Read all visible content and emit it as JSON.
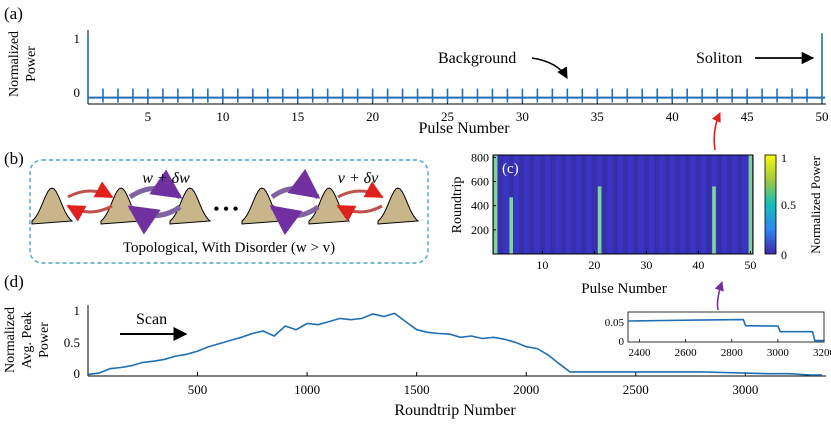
{
  "colors": {
    "line": "#1f6fb4",
    "axis": "#000000",
    "dashed_box": "#4aa3c8",
    "gauss_fill": "#c8b68a",
    "arrow_red": "#c0504d",
    "arrow_purple": "#8064a2",
    "annot_red": "#e0201b",
    "annot_purple": "#7030a0",
    "heat_bg": "#3a33c8",
    "heat_stripe": "#352fa8",
    "heat_hot": "#7fd49a"
  },
  "panel_a": {
    "label": "(a)",
    "ylabel_line1": "Normalized",
    "ylabel_line2": "Power",
    "yticks": [
      "1",
      "0"
    ],
    "xticks": [
      "5",
      "10",
      "15",
      "20",
      "25",
      "30",
      "35",
      "40",
      "45",
      "50"
    ],
    "xlabel": "Pulse Number",
    "annot_background": "Background",
    "annot_soliton": "Soliton"
  },
  "panel_b": {
    "label": "(b)",
    "hop_left": "w + δw",
    "hop_right": "v + δv",
    "dots": "• • •",
    "caption": "Topological, With Disorder (w > v)"
  },
  "panel_c": {
    "label": "(c)",
    "ylabel": "Roundtrip",
    "yticks": [
      "800",
      "600",
      "400",
      "200"
    ],
    "xticks": [
      "10",
      "20",
      "30",
      "40",
      "50"
    ],
    "xlabel": "Pulse Number",
    "colorbar_label": "Normalized Power",
    "colorbar_ticks": [
      "1",
      "0.5",
      "0"
    ]
  },
  "panel_d": {
    "label": "(d)",
    "ylabel_line1": "Normalized",
    "ylabel_line2": "Avg. Peak",
    "ylabel_line3": "Power",
    "yticks": [
      "1",
      "0.5",
      "0"
    ],
    "xticks": [
      "500",
      "1000",
      "1500",
      "2000",
      "2500",
      "3000"
    ],
    "xlabel": "Roundtrip Number",
    "scan_label": "Scan",
    "inset_yticks": [
      "0.05",
      "0"
    ],
    "inset_xticks": [
      "2400",
      "2600",
      "2800",
      "3000",
      "3200"
    ]
  },
  "chart_data": [
    {
      "id": "a",
      "type": "line",
      "title": "",
      "xlabel": "Pulse Number",
      "ylabel": "Normalized Power",
      "xlim": [
        1,
        50
      ],
      "ylim": [
        -0.1,
        1.05
      ],
      "pulse_positions": [
        1,
        2,
        3,
        4,
        5,
        6,
        7,
        8,
        9,
        10,
        11,
        12,
        13,
        14,
        15,
        16,
        17,
        18,
        19,
        20,
        21,
        22,
        23,
        24,
        25,
        26,
        27,
        28,
        29,
        30,
        31,
        32,
        33,
        34,
        35,
        36,
        37,
        38,
        39,
        40,
        41,
        42,
        43,
        44,
        45,
        46,
        47,
        48,
        49,
        50
      ],
      "peak_values": [
        1.0,
        0.14,
        0.14,
        0.14,
        0.14,
        0.14,
        0.14,
        0.14,
        0.14,
        0.14,
        0.14,
        0.14,
        0.14,
        0.14,
        0.14,
        0.14,
        0.14,
        0.14,
        0.14,
        0.14,
        0.14,
        0.14,
        0.14,
        0.14,
        0.14,
        0.14,
        0.14,
        0.14,
        0.14,
        0.14,
        0.14,
        0.14,
        0.14,
        0.14,
        0.14,
        0.14,
        0.14,
        0.14,
        0.14,
        0.14,
        0.14,
        0.14,
        0.14,
        0.14,
        0.14,
        0.14,
        0.14,
        0.14,
        0.14,
        1.0
      ]
    },
    {
      "id": "c",
      "type": "heatmap",
      "xlabel": "Pulse Number",
      "ylabel": "Roundtrip",
      "xlim": [
        1,
        50
      ],
      "ylim": [
        0,
        820
      ],
      "background_level": 0.1,
      "hot_traces": [
        {
          "pulse": 1,
          "from_roundtrip": 0,
          "to_roundtrip": 820,
          "level": 0.6
        },
        {
          "pulse": 4,
          "from_roundtrip": 0,
          "to_roundtrip": 470,
          "level": 0.55
        },
        {
          "pulse": 21,
          "from_roundtrip": 0,
          "to_roundtrip": 560,
          "level": 0.55
        },
        {
          "pulse": 43,
          "from_roundtrip": 0,
          "to_roundtrip": 560,
          "level": 0.55
        },
        {
          "pulse": 50,
          "from_roundtrip": 0,
          "to_roundtrip": 820,
          "level": 0.6
        }
      ],
      "colorbar_range": [
        0,
        1
      ]
    },
    {
      "id": "d",
      "type": "line",
      "xlabel": "Roundtrip Number",
      "ylabel": "Normalized Avg. Peak Power",
      "xlim": [
        0,
        3350
      ],
      "ylim": [
        0,
        1.05
      ],
      "x": [
        0,
        50,
        100,
        150,
        200,
        250,
        300,
        350,
        400,
        450,
        500,
        550,
        600,
        650,
        700,
        750,
        800,
        850,
        900,
        950,
        1000,
        1050,
        1100,
        1150,
        1200,
        1250,
        1300,
        1350,
        1400,
        1450,
        1500,
        1550,
        1600,
        1650,
        1700,
        1750,
        1800,
        1850,
        1900,
        1950,
        2000,
        2050,
        2100,
        2150,
        2200,
        2250,
        2300,
        2400,
        2600,
        2800,
        2900,
        3000,
        3100,
        3200,
        3300,
        3350
      ],
      "y": [
        0.01,
        0.03,
        0.1,
        0.12,
        0.15,
        0.2,
        0.22,
        0.25,
        0.3,
        0.33,
        0.38,
        0.45,
        0.5,
        0.55,
        0.6,
        0.66,
        0.7,
        0.62,
        0.78,
        0.72,
        0.82,
        0.8,
        0.85,
        0.9,
        0.88,
        0.9,
        0.97,
        0.93,
        0.98,
        0.85,
        0.72,
        0.68,
        0.66,
        0.65,
        0.6,
        0.62,
        0.58,
        0.6,
        0.57,
        0.52,
        0.45,
        0.42,
        0.32,
        0.18,
        0.05,
        0.05,
        0.05,
        0.05,
        0.05,
        0.05,
        0.04,
        0.03,
        0.02,
        0.02,
        0.0,
        0.0
      ]
    },
    {
      "id": "d_inset",
      "type": "line",
      "xlim": [
        2350,
        3200
      ],
      "ylim": [
        0,
        0.06
      ],
      "x": [
        2350,
        2500,
        2650,
        2850,
        2860,
        3000,
        3010,
        3150,
        3160,
        3200
      ],
      "y": [
        0.045,
        0.046,
        0.047,
        0.048,
        0.035,
        0.034,
        0.022,
        0.022,
        0.003,
        0.003
      ]
    }
  ]
}
